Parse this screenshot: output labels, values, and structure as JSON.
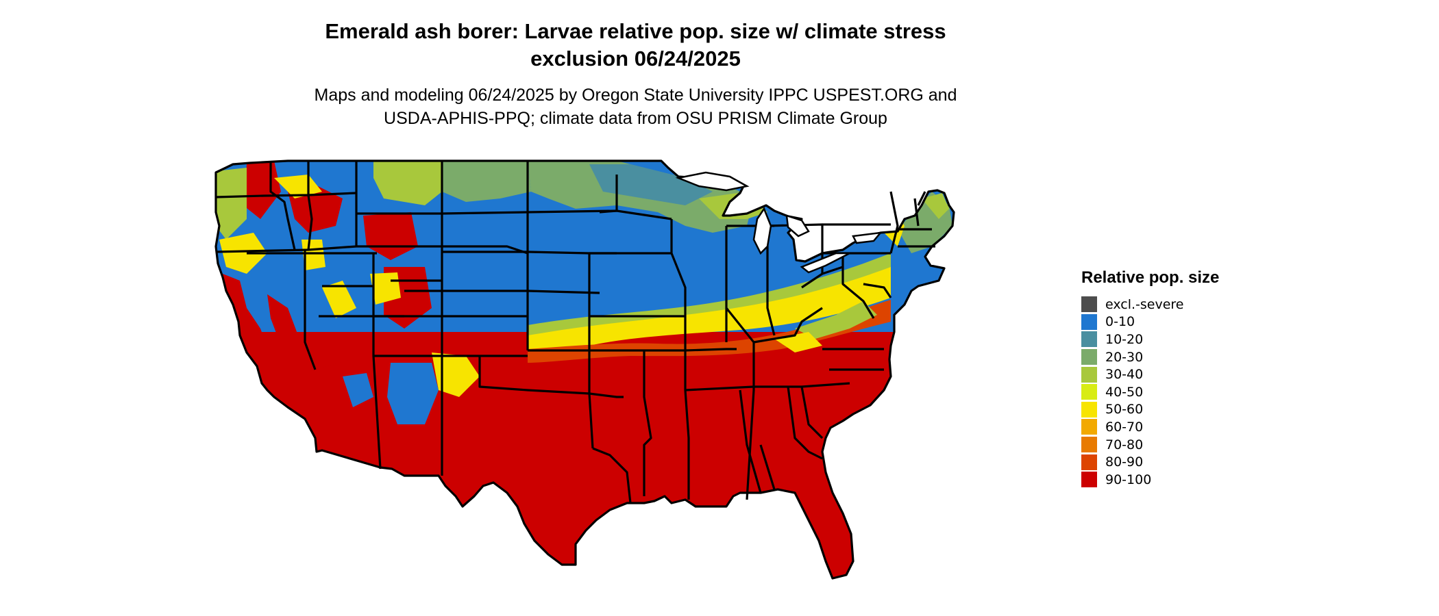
{
  "title": "Emerald ash borer: Larvae relative pop. size w/ climate stress exclusion 06/24/2025",
  "title_lines": [
    "Emerald ash borer: Larvae relative pop. size w/ climate stress",
    "exclusion 06/24/2025"
  ],
  "subtitle_lines": [
    "Maps and modeling 06/24/2025 by Oregon State University IPPC USPEST.ORG and",
    "USDA-APHIS-PPQ; climate data from OSU PRISM Climate Group"
  ],
  "legend": {
    "title": "Relative pop. size",
    "items": [
      {
        "label": "excl.-severe",
        "color": "#4d4d4d"
      },
      {
        "label": "0-10",
        "color": "#1f77d0"
      },
      {
        "label": "10-20",
        "color": "#4a8fa0"
      },
      {
        "label": "20-30",
        "color": "#7bab6a"
      },
      {
        "label": "30-40",
        "color": "#a8c83c"
      },
      {
        "label": "40-50",
        "color": "#d8ec14"
      },
      {
        "label": "50-60",
        "color": "#f7e400"
      },
      {
        "label": "60-70",
        "color": "#f2a900"
      },
      {
        "label": "70-80",
        "color": "#e87a00"
      },
      {
        "label": "80-90",
        "color": "#dd4400"
      },
      {
        "label": "90-100",
        "color": "#cc0000"
      }
    ]
  },
  "map": {
    "region": "Contiguous United States",
    "color_scale": [
      "#4d4d4d",
      "#1f77d0",
      "#4a8fa0",
      "#7bab6a",
      "#a8c83c",
      "#d8ec14",
      "#f7e400",
      "#f2a900",
      "#e87a00",
      "#dd4400",
      "#cc0000"
    ]
  }
}
